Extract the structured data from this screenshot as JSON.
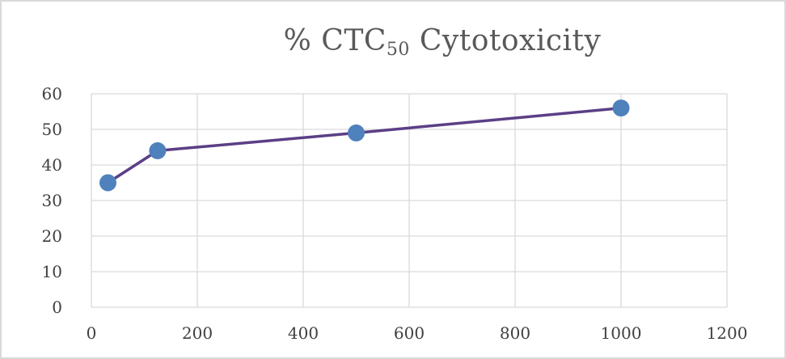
{
  "chart_data": {
    "type": "line",
    "title_main": "% CTC",
    "title_sub": "50",
    "title_rest": " Cytotoxicity",
    "xlabel": "",
    "ylabel": "",
    "xlim": [
      0,
      1200
    ],
    "ylim": [
      0,
      60
    ],
    "xticks": [
      0,
      200,
      400,
      600,
      800,
      1000,
      1200
    ],
    "yticks": [
      0,
      10,
      20,
      30,
      40,
      50,
      60
    ],
    "grid": true,
    "legend": "none",
    "series": [
      {
        "x": [
          31.25,
          125,
          500,
          1000
        ],
        "y": [
          35,
          44,
          49,
          56
        ]
      }
    ],
    "colors": {
      "line": "#5b3f86",
      "marker": "#4f81bd",
      "grid": "#d9d9d9",
      "text": "#404040"
    }
  }
}
